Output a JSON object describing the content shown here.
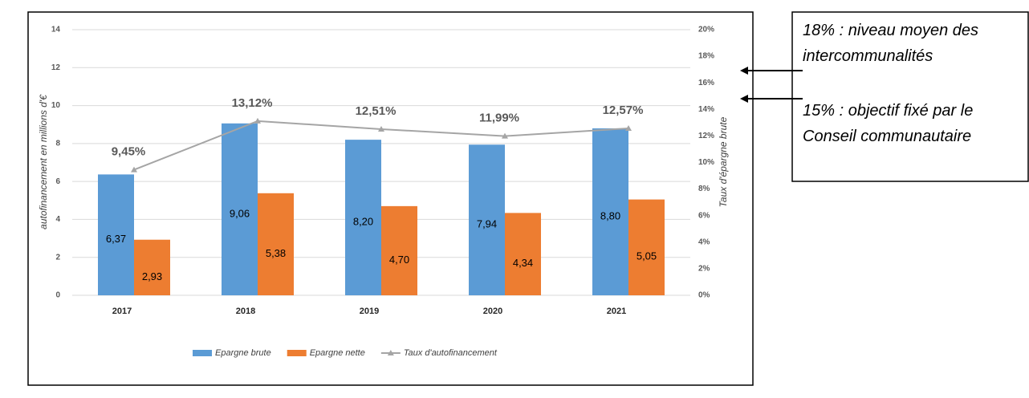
{
  "chart_data": {
    "type": "bar",
    "categories": [
      "2017",
      "2018",
      "2019",
      "2020",
      "2021"
    ],
    "series": [
      {
        "name": "Epargne brute",
        "color": "#5b9bd5",
        "values": [
          6.37,
          9.06,
          8.2,
          7.94,
          8.8
        ],
        "value_labels": [
          "6,37",
          "9,06",
          "8,20",
          "7,94",
          "8,80"
        ]
      },
      {
        "name": "Epargne nette",
        "color": "#ed7d31",
        "values": [
          2.93,
          5.38,
          4.7,
          4.34,
          5.05
        ],
        "value_labels": [
          "2,93",
          "5,38",
          "4,70",
          "4,34",
          "5,05"
        ]
      },
      {
        "name": "Taux d'autofinancement",
        "color": "#a5a5a5",
        "type": "line",
        "axis": "y2",
        "values": [
          9.45,
          13.12,
          12.51,
          11.99,
          12.57
        ],
        "value_labels": [
          "9,45%",
          "13,12%",
          "12,51%",
          "11,99%",
          "12,57%"
        ]
      }
    ],
    "ylabel": "autofinancement en millions d'€",
    "y2label": "Taux d'épargne brute",
    "ylim": [
      0,
      14
    ],
    "yticks": [
      0,
      2,
      4,
      6,
      8,
      10,
      12,
      14
    ],
    "y2lim": [
      0,
      20
    ],
    "y2ticks": [
      {
        "value": 0,
        "label": "0%"
      },
      {
        "value": 2,
        "label": "2%"
      },
      {
        "value": 4,
        "label": "4%"
      },
      {
        "value": 6,
        "label": "6%"
      },
      {
        "value": 8,
        "label": "8%"
      },
      {
        "value": 10,
        "label": "10%"
      },
      {
        "value": 12,
        "label": "12%"
      },
      {
        "value": 14,
        "label": "14%"
      },
      {
        "value": 16,
        "label": "16%"
      },
      {
        "value": 18,
        "label": "18%"
      },
      {
        "value": 20,
        "label": "20%"
      }
    ],
    "grid": true,
    "legend": "bottom",
    "annotations": [
      "18% : niveau moyen des intercommunalités",
      "15% : objectif fixé par le Conseil communautaire"
    ]
  }
}
